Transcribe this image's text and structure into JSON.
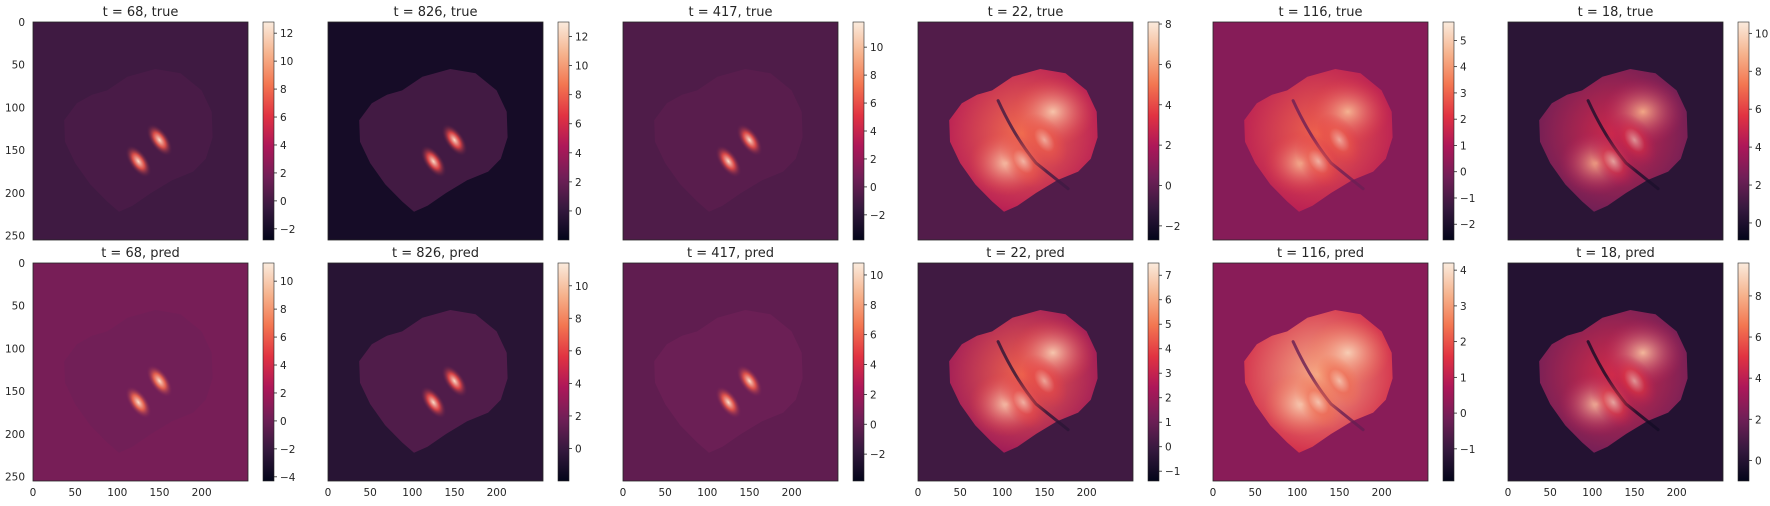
{
  "chart_data": {
    "type": "heatmap",
    "colormap": "rocket",
    "colormap_stops": [
      "#03051a",
      "#35193e",
      "#701f57",
      "#ad1759",
      "#e13342",
      "#f37651",
      "#f6b48f",
      "#faebdd"
    ],
    "layout": "2x6 grid of image panels, each with its own colorbar",
    "x_ticks": [
      "0",
      "50",
      "100",
      "150",
      "200"
    ],
    "y_ticks": [
      "0",
      "50",
      "100",
      "150",
      "200",
      "250"
    ],
    "xlim": [
      0,
      255
    ],
    "ylim": [
      255,
      0
    ],
    "panels": [
      {
        "title": "t = 68, true",
        "row": 0,
        "col": 0,
        "vmin": -2.8,
        "vmax": 12.8,
        "bg": -0.2,
        "fg": 0.2,
        "lobes": 12,
        "style": "sparse",
        "cbar_ticks": [
          {
            "v": -2,
            "t": "−2"
          },
          {
            "v": 0,
            "t": "0"
          },
          {
            "v": 2,
            "t": "2"
          },
          {
            "v": 4,
            "t": "4"
          },
          {
            "v": 6,
            "t": "6"
          },
          {
            "v": 8,
            "t": "8"
          },
          {
            "v": 10,
            "t": "10"
          },
          {
            "v": 12,
            "t": "12"
          }
        ]
      },
      {
        "title": "t = 826, true",
        "row": 0,
        "col": 1,
        "vmin": -2.0,
        "vmax": 13.0,
        "bg": -1.2,
        "fg": 0.6,
        "lobes": 12,
        "style": "sparse",
        "cbar_ticks": [
          {
            "v": 0,
            "t": "0"
          },
          {
            "v": 2,
            "t": "2"
          },
          {
            "v": 4,
            "t": "4"
          },
          {
            "v": 6,
            "t": "6"
          },
          {
            "v": 8,
            "t": "8"
          },
          {
            "v": 10,
            "t": "10"
          },
          {
            "v": 12,
            "t": "12"
          }
        ]
      },
      {
        "title": "t = 417, true",
        "row": 0,
        "col": 2,
        "vmin": -3.8,
        "vmax": 11.8,
        "bg": -0.6,
        "fg": -0.2,
        "lobes": 10,
        "style": "sparse",
        "cbar_ticks": [
          {
            "v": -2,
            "t": "−2"
          },
          {
            "v": 0,
            "t": "0"
          },
          {
            "v": 2,
            "t": "2"
          },
          {
            "v": 4,
            "t": "4"
          },
          {
            "v": 6,
            "t": "6"
          },
          {
            "v": 8,
            "t": "8"
          },
          {
            "v": 10,
            "t": "10"
          }
        ]
      },
      {
        "title": "t = 22, true",
        "row": 0,
        "col": 3,
        "vmin": -2.7,
        "vmax": 8.1,
        "bg": -0.4,
        "fg": 4.0,
        "lobes": 7.2,
        "style": "bright",
        "cbar_ticks": [
          {
            "v": -2,
            "t": "−2"
          },
          {
            "v": 0,
            "t": "0"
          },
          {
            "v": 2,
            "t": "2"
          },
          {
            "v": 4,
            "t": "4"
          },
          {
            "v": 6,
            "t": "6"
          },
          {
            "v": 8,
            "t": "8"
          }
        ]
      },
      {
        "title": "t = 116, true",
        "row": 0,
        "col": 4,
        "vmin": -2.6,
        "vmax": 5.7,
        "bg": 0.2,
        "fg": 2.2,
        "lobes": 4.6,
        "style": "bright",
        "cbar_ticks": [
          {
            "v": -2,
            "t": "−2"
          },
          {
            "v": -1,
            "t": "−1"
          },
          {
            "v": 0,
            "t": "0"
          },
          {
            "v": 1,
            "t": "1"
          },
          {
            "v": 2,
            "t": "2"
          },
          {
            "v": 3,
            "t": "3"
          },
          {
            "v": 4,
            "t": "4"
          },
          {
            "v": 5,
            "t": "5"
          }
        ]
      },
      {
        "title": "t = 18, true",
        "row": 0,
        "col": 5,
        "vmin": -0.9,
        "vmax": 10.6,
        "bg": 0.4,
        "fg": 4.2,
        "lobes": 8.8,
        "style": "bright",
        "cbar_ticks": [
          {
            "v": 0,
            "t": "0"
          },
          {
            "v": 2,
            "t": "2"
          },
          {
            "v": 4,
            "t": "4"
          },
          {
            "v": 6,
            "t": "6"
          },
          {
            "v": 8,
            "t": "8"
          },
          {
            "v": 10,
            "t": "10"
          }
        ]
      },
      {
        "title": "t = 68, pred",
        "row": 1,
        "col": 0,
        "vmin": -4.3,
        "vmax": 11.3,
        "bg": 0.4,
        "fg": 0.2,
        "lobes": 10.5,
        "style": "sparse",
        "cbar_ticks": [
          {
            "v": -4,
            "t": "−4"
          },
          {
            "v": -2,
            "t": "−2"
          },
          {
            "v": 0,
            "t": "0"
          },
          {
            "v": 2,
            "t": "2"
          },
          {
            "v": 4,
            "t": "4"
          },
          {
            "v": 6,
            "t": "6"
          },
          {
            "v": 8,
            "t": "8"
          },
          {
            "v": 10,
            "t": "10"
          }
        ]
      },
      {
        "title": "t = 826, pred",
        "row": 1,
        "col": 1,
        "vmin": -2.0,
        "vmax": 11.4,
        "bg": -0.6,
        "fg": 0.8,
        "lobes": 10.5,
        "style": "sparse",
        "cbar_ticks": [
          {
            "v": 0,
            "t": "0"
          },
          {
            "v": 2,
            "t": "2"
          },
          {
            "v": 4,
            "t": "4"
          },
          {
            "v": 6,
            "t": "6"
          },
          {
            "v": 8,
            "t": "8"
          },
          {
            "v": 10,
            "t": "10"
          }
        ]
      },
      {
        "title": "t = 417, pred",
        "row": 1,
        "col": 2,
        "vmin": -3.8,
        "vmax": 10.8,
        "bg": -0.2,
        "fg": 0.2,
        "lobes": 9.5,
        "style": "sparse",
        "cbar_ticks": [
          {
            "v": -2,
            "t": "−2"
          },
          {
            "v": 0,
            "t": "0"
          },
          {
            "v": 2,
            "t": "2"
          },
          {
            "v": 4,
            "t": "4"
          },
          {
            "v": 6,
            "t": "6"
          },
          {
            "v": 8,
            "t": "8"
          },
          {
            "v": 10,
            "t": "10"
          }
        ]
      },
      {
        "title": "t = 22, pred",
        "row": 1,
        "col": 3,
        "vmin": -1.4,
        "vmax": 7.5,
        "bg": 0.1,
        "fg": 3.8,
        "lobes": 6.8,
        "style": "bright",
        "cbar_ticks": [
          {
            "v": -1,
            "t": "−1"
          },
          {
            "v": 0,
            "t": "0"
          },
          {
            "v": 1,
            "t": "1"
          },
          {
            "v": 2,
            "t": "2"
          },
          {
            "v": 3,
            "t": "3"
          },
          {
            "v": 4,
            "t": "4"
          },
          {
            "v": 5,
            "t": "5"
          },
          {
            "v": 6,
            "t": "6"
          },
          {
            "v": 7,
            "t": "7"
          }
        ]
      },
      {
        "title": "t = 116, pred",
        "row": 1,
        "col": 4,
        "vmin": -1.9,
        "vmax": 4.2,
        "bg": 0.2,
        "fg": 2.4,
        "lobes": 3.8,
        "style": "bright",
        "cbar_ticks": [
          {
            "v": -1,
            "t": "−1"
          },
          {
            "v": 0,
            "t": "0"
          },
          {
            "v": 1,
            "t": "1"
          },
          {
            "v": 2,
            "t": "2"
          },
          {
            "v": 3,
            "t": "3"
          },
          {
            "v": 4,
            "t": "4"
          }
        ]
      },
      {
        "title": "t = 18, pred",
        "row": 1,
        "col": 5,
        "vmin": -1.0,
        "vmax": 9.6,
        "bg": 0.0,
        "fg": 3.8,
        "lobes": 8.4,
        "style": "bright",
        "cbar_ticks": [
          {
            "v": 0,
            "t": "0"
          },
          {
            "v": 2,
            "t": "2"
          },
          {
            "v": 4,
            "t": "4"
          },
          {
            "v": 6,
            "t": "6"
          },
          {
            "v": 8,
            "t": "8"
          }
        ]
      }
    ]
  }
}
